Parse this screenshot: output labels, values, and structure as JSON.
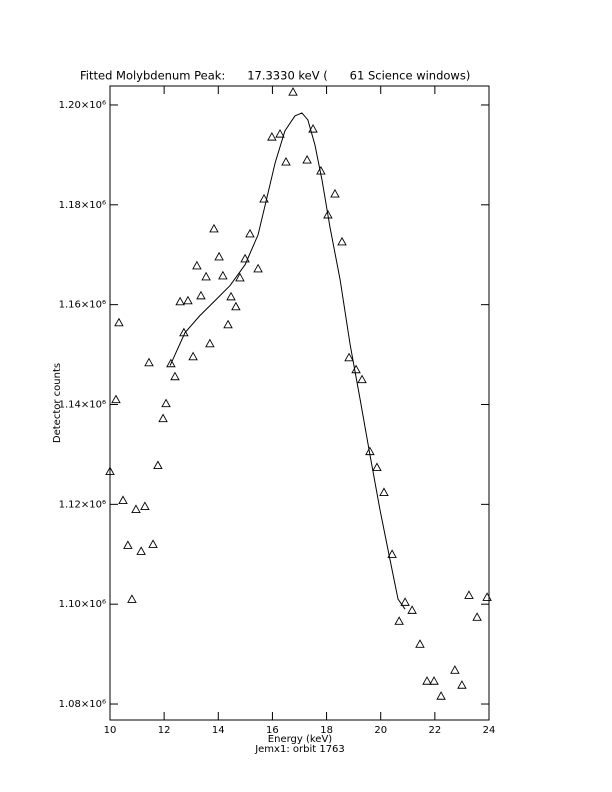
{
  "chart_data": {
    "type": "scatter",
    "title": "Fitted Molybdenum Peak:      17.3330 keV (      61 Science windows)",
    "x_label": "Energy (keV)",
    "subtitle": "Jemx1: orbit 1763",
    "y_label": "Detector counts",
    "xlim": [
      10,
      24
    ],
    "xticks": [
      10,
      12,
      14,
      16,
      18,
      20,
      22,
      24
    ],
    "ylim": [
      1076800,
      1203800
    ],
    "yticks": [
      {
        "value": 1080000,
        "label": "1.08×10⁶"
      },
      {
        "value": 1100000,
        "label": "1.10×10⁶"
      },
      {
        "value": 1120000,
        "label": "1.12×10⁶"
      },
      {
        "value": 1140000,
        "label": "1.14×10⁶"
      },
      {
        "value": 1160000,
        "label": "1.16×10⁶"
      },
      {
        "value": 1180000,
        "label": "1.18×10⁶"
      },
      {
        "value": 1200000,
        "label": "1.20×10⁶"
      }
    ],
    "grid": false,
    "series": [
      {
        "type": "scatter",
        "color": "#000000",
        "x": [
          10.0,
          10.22,
          10.33,
          10.48,
          10.66,
          10.81,
          10.96,
          11.15,
          11.29,
          11.44,
          11.59,
          11.77,
          11.96,
          12.07,
          12.25,
          12.4,
          12.59,
          12.73,
          12.88,
          13.07,
          13.21,
          13.36,
          13.55,
          13.69,
          13.84,
          14.03,
          14.17,
          14.36,
          14.47,
          14.65,
          14.8,
          14.99,
          15.17,
          15.47,
          15.69,
          15.98,
          16.28,
          16.5,
          16.76,
          17.28,
          17.5,
          17.79,
          18.05,
          18.31,
          18.57,
          18.83,
          19.09,
          19.31,
          19.6,
          19.86,
          20.12,
          20.42,
          20.68,
          20.9,
          21.16,
          21.45,
          21.71,
          21.97,
          22.23,
          22.74,
          23.0,
          23.26,
          23.56,
          23.93
        ],
        "values": [
          1126600,
          1141000,
          1156400,
          1120800,
          1111800,
          1101000,
          1119000,
          1110600,
          1119600,
          1148400,
          1112000,
          1127800,
          1137200,
          1140200,
          1148200,
          1145600,
          1160600,
          1154400,
          1160800,
          1149600,
          1167800,
          1161800,
          1165600,
          1152200,
          1175200,
          1169600,
          1165800,
          1156000,
          1161600,
          1159600,
          1165400,
          1169200,
          1174200,
          1167200,
          1181200,
          1193600,
          1194200,
          1188600,
          1202600,
          1189000,
          1195200,
          1186800,
          1178000,
          1182200,
          1172600,
          1149400,
          1147000,
          1145000,
          1130600,
          1127400,
          1122400,
          1110000,
          1096600,
          1100400,
          1098800,
          1092000,
          1084600,
          1084600,
          1081600,
          1086800,
          1083800,
          1101800,
          1097400,
          1101400
        ]
      },
      {
        "type": "line",
        "color": "#000000",
        "x": [
          12.22,
          12.77,
          13.32,
          13.88,
          14.43,
          14.99,
          15.47,
          15.76,
          16.1,
          16.46,
          16.83,
          17.09,
          17.31,
          17.57,
          17.83,
          18.13,
          18.5,
          18.87,
          19.24,
          19.6,
          19.97,
          20.34,
          20.64,
          20.9
        ],
        "values": [
          1147800,
          1154400,
          1157800,
          1160800,
          1163800,
          1168000,
          1174000,
          1180600,
          1188400,
          1194800,
          1197800,
          1198400,
          1197000,
          1192000,
          1185000,
          1175400,
          1165000,
          1152000,
          1141000,
          1130000,
          1119000,
          1109000,
          1101000,
          1099000
        ]
      }
    ]
  }
}
